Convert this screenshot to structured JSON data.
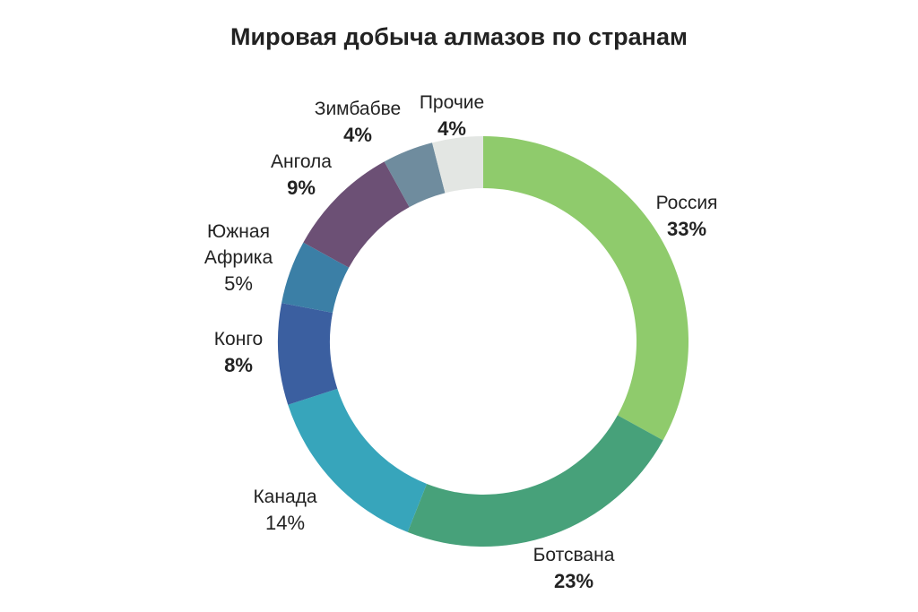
{
  "chart_data": {
    "type": "pie",
    "subtype": "donut",
    "title": "Мировая добыча алмазов по странам",
    "unit": "%",
    "slices": [
      {
        "label": "Россия",
        "value": 33,
        "value_label": "33%",
        "color": "#8fcb6c",
        "bold": true
      },
      {
        "label": "Ботсвана",
        "value": 23,
        "value_label": "23%",
        "color": "#47a17a",
        "bold": true
      },
      {
        "label": "Канада",
        "value": 14,
        "value_label": "14%",
        "color": "#37a5bb",
        "bold": false
      },
      {
        "label": "Конго",
        "value": 8,
        "value_label": "8%",
        "color": "#3b5fa0",
        "bold": true
      },
      {
        "label": "Южная Африка",
        "value": 5,
        "value_label": "5%",
        "color": "#3b7fa6",
        "bold": false
      },
      {
        "label": "Ангола",
        "value": 9,
        "value_label": "9%",
        "color": "#6c5075",
        "bold": true
      },
      {
        "label": "Зимбабве",
        "value": 4,
        "value_label": "4%",
        "color": "#6f8c9e",
        "bold": true
      },
      {
        "label": "Прочие",
        "value": 4,
        "value_label": "4%",
        "color": "#e3e6e3",
        "bold": true
      }
    ],
    "label_lines": {
      "Южная Африка": [
        "Южная",
        "Африка"
      ]
    },
    "legend": "none",
    "start_angle": "top",
    "direction": "clockwise"
  }
}
